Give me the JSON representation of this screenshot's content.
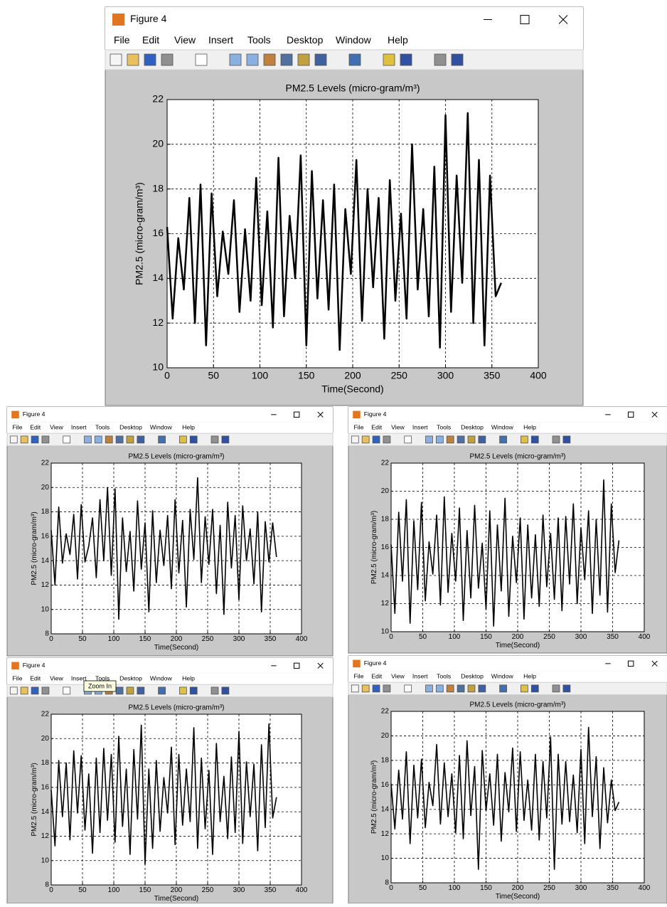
{
  "window": {
    "title": "Figure 4",
    "menu": [
      "File",
      "Edit",
      "View",
      "Insert",
      "Tools",
      "Desktop",
      "Window",
      "Help"
    ]
  },
  "tooltip": "Zoom In",
  "chart_data": [
    {
      "type": "line",
      "title": "PM2.5 Levels (micro-gram/m³)",
      "xlabel": "Time(Second)",
      "ylabel": "PM2.5 (micro-gram/m³)",
      "color": "#000000",
      "grid": true,
      "xlim": [
        0,
        400
      ],
      "xticks": [
        0,
        50,
        100,
        150,
        200,
        250,
        300,
        350,
        400
      ],
      "ylim": [
        10,
        22
      ],
      "yticks": [
        10,
        12,
        14,
        16,
        18,
        20,
        22
      ],
      "x": [
        0,
        6,
        12,
        18,
        24,
        30,
        36,
        42,
        48,
        54,
        60,
        66,
        72,
        78,
        84,
        90,
        96,
        102,
        108,
        114,
        120,
        126,
        132,
        138,
        144,
        150,
        156,
        162,
        168,
        174,
        180,
        186,
        192,
        198,
        204,
        210,
        216,
        222,
        228,
        234,
        240,
        246,
        252,
        258,
        264,
        270,
        276,
        282,
        288,
        294,
        300,
        306,
        312,
        318,
        324,
        330,
        336,
        342,
        348,
        354,
        360
      ],
      "values": [
        16.3,
        12.2,
        15.8,
        13.5,
        17.6,
        12.0,
        18.2,
        11.0,
        17.8,
        13.2,
        16.1,
        14.2,
        17.5,
        12.5,
        16.2,
        13.0,
        18.5,
        12.8,
        17.0,
        11.8,
        19.4,
        12.3,
        16.8,
        14.0,
        19.5,
        11.0,
        18.8,
        13.1,
        17.5,
        12.6,
        18.2,
        10.8,
        17.1,
        14.2,
        19.3,
        12.1,
        18.0,
        13.6,
        17.6,
        11.3,
        18.4,
        13.0,
        16.9,
        12.2,
        20.0,
        13.5,
        17.1,
        12.3,
        19.0,
        10.9,
        21.3,
        12.5,
        18.6,
        13.8,
        21.4,
        12.0,
        19.3,
        11.0,
        18.6,
        13.2,
        13.8
      ]
    },
    {
      "type": "line",
      "title": "PM2.5 Levels (micro-gram/m³)",
      "xlabel": "Time(Second)",
      "ylabel": "PM2.5 (micro-gram/m³)",
      "color": "#000000",
      "grid": true,
      "xlim": [
        0,
        400
      ],
      "xticks": [
        0,
        50,
        100,
        150,
        200,
        250,
        300,
        350,
        400
      ],
      "ylim": [
        8,
        22
      ],
      "yticks": [
        8,
        10,
        12,
        14,
        16,
        18,
        20,
        22
      ],
      "x": [
        0,
        6,
        12,
        18,
        24,
        30,
        36,
        42,
        48,
        54,
        60,
        66,
        72,
        78,
        84,
        90,
        96,
        102,
        108,
        114,
        120,
        126,
        132,
        138,
        144,
        150,
        156,
        162,
        168,
        174,
        180,
        186,
        192,
        198,
        204,
        210,
        216,
        222,
        228,
        234,
        240,
        246,
        252,
        258,
        264,
        270,
        276,
        282,
        288,
        294,
        300,
        306,
        312,
        318,
        324,
        330,
        336,
        342,
        348,
        354,
        360
      ],
      "values": [
        16.5,
        12.0,
        18.4,
        13.8,
        16.2,
        14.5,
        17.8,
        12.5,
        18.6,
        13.9,
        15.2,
        17.5,
        12.6,
        19.0,
        14.0,
        20.0,
        12.8,
        19.9,
        9.2,
        17.5,
        13.1,
        16.4,
        11.5,
        18.9,
        13.3,
        17.1,
        9.8,
        18.1,
        12.2,
        16.5,
        13.6,
        17.7,
        11.7,
        19.0,
        13.0,
        17.3,
        10.2,
        18.2,
        14.1,
        20.8,
        12.2,
        17.6,
        13.7,
        18.2,
        11.3,
        16.9,
        9.6,
        18.8,
        13.4,
        17.7,
        10.8,
        18.5,
        14.0,
        16.6,
        12.1,
        18.0,
        9.8,
        17.2,
        13.9,
        17.1,
        14.3
      ]
    },
    {
      "type": "line",
      "title": "PM2.5 Levels (micro-gram/m³)",
      "xlabel": "Time(Second)",
      "ylabel": "PM2.5 (micro-gram/m³)",
      "color": "#000000",
      "grid": true,
      "xlim": [
        0,
        400
      ],
      "xticks": [
        0,
        50,
        100,
        150,
        200,
        250,
        300,
        350,
        400
      ],
      "ylim": [
        10,
        22
      ],
      "yticks": [
        10,
        12,
        14,
        16,
        18,
        20,
        22
      ],
      "x": [
        0,
        6,
        12,
        18,
        24,
        30,
        36,
        42,
        48,
        54,
        60,
        66,
        72,
        78,
        84,
        90,
        96,
        102,
        108,
        114,
        120,
        126,
        132,
        138,
        144,
        150,
        156,
        162,
        168,
        174,
        180,
        186,
        192,
        198,
        204,
        210,
        216,
        222,
        228,
        234,
        240,
        246,
        252,
        258,
        264,
        270,
        276,
        282,
        288,
        294,
        300,
        306,
        312,
        318,
        324,
        330,
        336,
        342,
        348,
        354,
        360
      ],
      "values": [
        16.2,
        11.3,
        18.5,
        13.6,
        19.4,
        10.6,
        17.9,
        13.0,
        19.2,
        12.2,
        16.4,
        14.1,
        18.3,
        11.9,
        19.6,
        12.8,
        17.0,
        13.6,
        18.8,
        10.8,
        17.2,
        12.4,
        19.0,
        13.1,
        16.3,
        11.6,
        18.6,
        10.4,
        17.6,
        12.9,
        19.5,
        11.1,
        16.8,
        13.5,
        18.1,
        10.9,
        17.6,
        12.4,
        16.9,
        11.8,
        18.3,
        13.2,
        17.0,
        12.3,
        18.1,
        11.5,
        18.2,
        13.4,
        19.1,
        12.0,
        17.4,
        13.7,
        18.6,
        11.3,
        18.0,
        12.6,
        20.8,
        11.4,
        19.1,
        14.2,
        16.5
      ]
    },
    {
      "type": "line",
      "title": "PM2.5 Levels (micro-gram/m³)",
      "xlabel": "Time(Second)",
      "ylabel": "PM2.5 (micro-gram/m³)",
      "color": "#000000",
      "grid": true,
      "xlim": [
        0,
        400
      ],
      "xticks": [
        0,
        50,
        100,
        150,
        200,
        250,
        300,
        350,
        400
      ],
      "ylim": [
        8,
        22
      ],
      "yticks": [
        8,
        10,
        12,
        14,
        16,
        18,
        20,
        22
      ],
      "x": [
        0,
        6,
        12,
        18,
        24,
        30,
        36,
        42,
        48,
        54,
        60,
        66,
        72,
        78,
        84,
        90,
        96,
        102,
        108,
        114,
        120,
        126,
        132,
        138,
        144,
        150,
        156,
        162,
        168,
        174,
        180,
        186,
        192,
        198,
        204,
        210,
        216,
        222,
        228,
        234,
        240,
        246,
        252,
        258,
        264,
        270,
        276,
        282,
        288,
        294,
        300,
        306,
        312,
        318,
        324,
        330,
        336,
        342,
        348,
        354,
        360
      ],
      "values": [
        15.8,
        11.2,
        18.2,
        13.6,
        18.0,
        11.7,
        19.0,
        13.9,
        18.6,
        12.5,
        17.1,
        10.6,
        18.4,
        12.3,
        19.2,
        13.3,
        18.7,
        11.5,
        20.2,
        12.8,
        17.5,
        10.5,
        19.1,
        13.4,
        21.1,
        9.7,
        17.5,
        11.0,
        18.2,
        12.4,
        16.8,
        13.9,
        19.3,
        11.3,
        18.7,
        12.9,
        17.5,
        13.2,
        20.9,
        11.0,
        18.4,
        12.6,
        17.4,
        10.5,
        19.6,
        13.2,
        16.9,
        11.8,
        18.5,
        12.3,
        20.6,
        11.4,
        18.1,
        13.6,
        17.9,
        10.8,
        19.5,
        12.7,
        21.2,
        13.5,
        15.2
      ]
    },
    {
      "type": "line",
      "title": "PM2.5 Levels (micro-gram/m³)",
      "xlabel": "Time(Second)",
      "ylabel": "PM2.5 (micro-gram/m³)",
      "color": "#000000",
      "grid": true,
      "xlim": [
        0,
        400
      ],
      "xticks": [
        0,
        50,
        100,
        150,
        200,
        250,
        300,
        350,
        400
      ],
      "ylim": [
        8,
        22
      ],
      "yticks": [
        8,
        10,
        12,
        14,
        16,
        18,
        20,
        22
      ],
      "x": [
        0,
        6,
        12,
        18,
        24,
        30,
        36,
        42,
        48,
        54,
        60,
        66,
        72,
        78,
        84,
        90,
        96,
        102,
        108,
        114,
        120,
        126,
        132,
        138,
        144,
        150,
        156,
        162,
        168,
        174,
        180,
        186,
        192,
        198,
        204,
        210,
        216,
        222,
        228,
        234,
        240,
        246,
        252,
        258,
        264,
        270,
        276,
        282,
        288,
        294,
        300,
        306,
        312,
        318,
        324,
        330,
        336,
        342,
        348,
        354,
        360
      ],
      "values": [
        16.1,
        12.4,
        17.2,
        13.2,
        18.7,
        11.2,
        17.6,
        13.3,
        18.1,
        12.5,
        16.2,
        14.3,
        19.3,
        12.8,
        17.8,
        13.4,
        16.9,
        12.1,
        18.4,
        11.6,
        19.6,
        13.5,
        17.5,
        9.1,
        18.8,
        13.9,
        16.9,
        12.7,
        18.5,
        11.4,
        17.0,
        13.8,
        19.0,
        12.2,
        18.7,
        13.1,
        16.4,
        12.3,
        18.5,
        11.5,
        17.9,
        13.3,
        19.9,
        9.1,
        18.5,
        12.8,
        17.9,
        13.0,
        16.8,
        12.1,
        18.9,
        11.2,
        20.7,
        13.4,
        18.3,
        10.8,
        17.4,
        12.9,
        16.4,
        13.9,
        14.6
      ]
    }
  ]
}
